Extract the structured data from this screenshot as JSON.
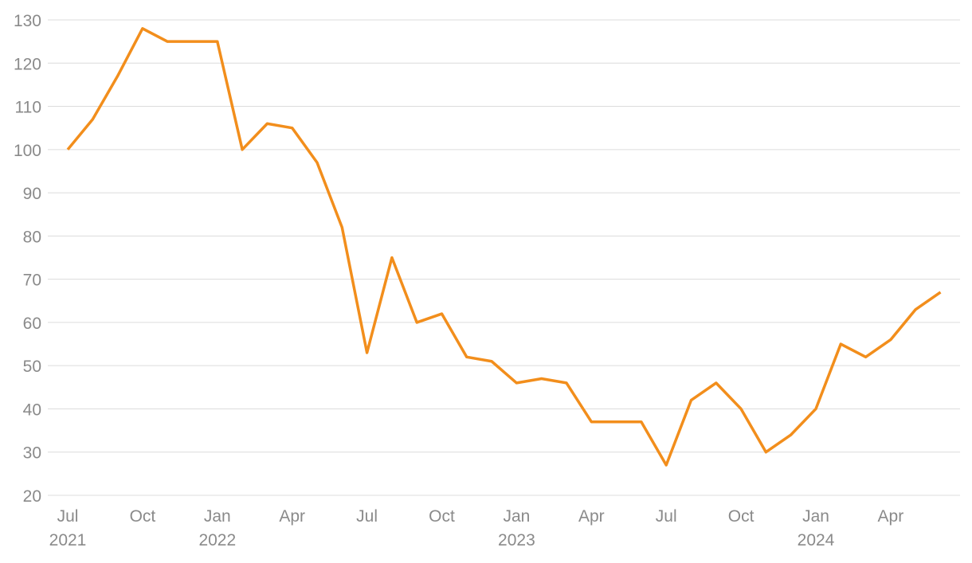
{
  "chart_data": {
    "type": "line",
    "x": [
      "2021-07",
      "2021-08",
      "2021-09",
      "2021-10",
      "2021-11",
      "2021-12",
      "2022-01",
      "2022-02",
      "2022-03",
      "2022-04",
      "2022-05",
      "2022-06",
      "2022-07",
      "2022-08",
      "2022-09",
      "2022-10",
      "2022-11",
      "2022-12",
      "2023-01",
      "2023-02",
      "2023-03",
      "2023-04",
      "2023-05",
      "2023-06",
      "2023-07",
      "2023-08",
      "2023-09",
      "2023-10",
      "2023-11",
      "2023-12",
      "2024-01",
      "2024-02",
      "2024-03",
      "2024-04",
      "2024-05",
      "2024-06"
    ],
    "series": [
      {
        "color": "#f28e1c",
        "values": [
          100,
          107,
          117,
          128,
          125,
          125,
          125,
          100,
          106,
          105,
          97,
          82,
          53,
          75,
          60,
          62,
          52,
          51,
          46,
          47,
          46,
          37,
          37,
          37,
          27,
          42,
          46,
          40,
          30,
          34,
          40,
          55,
          52,
          56,
          63,
          67
        ]
      }
    ],
    "ylim": [
      20,
      130
    ],
    "yticks": [
      20,
      30,
      40,
      50,
      60,
      70,
      80,
      90,
      100,
      110,
      120,
      130
    ],
    "xticks": [
      {
        "value": "2021-07",
        "label": "Jul 2021"
      },
      {
        "value": "2021-10",
        "label": "Oct"
      },
      {
        "value": "2022-01",
        "label": "Jan 2022"
      },
      {
        "value": "2022-04",
        "label": "Apr"
      },
      {
        "value": "2022-07",
        "label": "Jul"
      },
      {
        "value": "2022-10",
        "label": "Oct"
      },
      {
        "value": "2023-01",
        "label": "Jan 2023"
      },
      {
        "value": "2023-04",
        "label": "Apr"
      },
      {
        "value": "2023-07",
        "label": "Jul"
      },
      {
        "value": "2023-10",
        "label": "Oct"
      },
      {
        "value": "2024-01",
        "label": "Jan 2024"
      },
      {
        "value": "2024-04",
        "label": "Apr"
      }
    ],
    "grid": true
  }
}
